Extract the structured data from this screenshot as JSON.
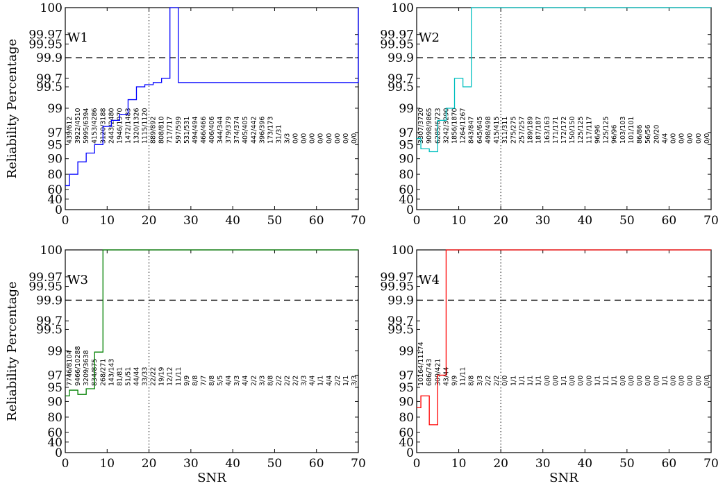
{
  "chart_data": [
    {
      "type": "line",
      "title": "W1",
      "xlabel": "",
      "ylabel": "Reliability Percentage",
      "color": "#0000ff",
      "xlim": [
        0,
        70
      ],
      "y_ticks": [
        "0",
        "40",
        "60",
        "80",
        "90",
        "95",
        "97",
        "99",
        "99.5",
        "99.7",
        "99.9",
        "99.95",
        "99.97",
        "100"
      ],
      "x_ticks": [
        "0",
        "10",
        "20",
        "30",
        "40",
        "50",
        "60",
        "70"
      ],
      "reference_x": 20,
      "reference_y": "99.9",
      "series": [
        {
          "step_x": [
            0,
            1,
            3,
            5,
            7,
            9,
            11,
            13,
            15,
            17,
            19,
            21,
            23,
            25,
            27,
            70
          ],
          "step_y": [
            65,
            80,
            88,
            92,
            95,
            97.5,
            98,
            98.5,
            99.2,
            99.5,
            99.55,
            99.6,
            99.7,
            100,
            99.6,
            100
          ]
        }
      ],
      "count_labels": [
        "439/612",
        "3922/4510",
        "5995/6394",
        "4153/4286",
        "3120/3188",
        "2443/2480",
        "1946/1970",
        "1472/1483",
        "1320/1326",
        "1115/1120",
        "889/892",
        "808/810",
        "717/717",
        "597/599",
        "531/531",
        "494/494",
        "466/466",
        "406/406",
        "344/344",
        "379/379",
        "374/374",
        "405/405",
        "442/442",
        "396/396",
        "173/173",
        "31/31",
        "3/3",
        "0/0",
        "0/0",
        "0/0",
        "0/0",
        "0/0",
        "0/0",
        "0/0",
        "0/0"
      ]
    },
    {
      "type": "line",
      "title": "W2",
      "xlabel": "",
      "ylabel": "",
      "color": "#00bfbf",
      "xlim": [
        0,
        70
      ],
      "y_ticks": [
        "0",
        "40",
        "60",
        "80",
        "90",
        "95",
        "97",
        "99",
        "99.5",
        "99.7",
        "99.9",
        "99.95",
        "99.97",
        "100"
      ],
      "x_ticks": [
        "0",
        "10",
        "20",
        "30",
        "40",
        "50",
        "60",
        "70"
      ],
      "reference_x": 20,
      "reference_y": "99.9",
      "series": [
        {
          "step_x": [
            0,
            1,
            3,
            5,
            7,
            9,
            11,
            13,
            70
          ],
          "step_y": [
            96,
            93.5,
            92.5,
            98,
            99,
            99.7,
            99.5,
            100,
            100
          ]
        }
      ],
      "count_labels": [
        "3307/3720",
        "9098/9865",
        "6285/6723",
        "3242/3290",
        "1856/1870",
        "1264/1267",
        "843/847",
        "645/645",
        "498/498",
        "415/415",
        "311/311",
        "275/275",
        "257/257",
        "189/189",
        "187/187",
        "163/163",
        "171/171",
        "172/172",
        "150/150",
        "125/125",
        "117/117",
        "96/96",
        "125/125",
        "96/96",
        "103/103",
        "101/101",
        "86/86",
        "56/56",
        "20/20",
        "4/4",
        "0/0",
        "0/0",
        "0/0",
        "0/0",
        "0/0"
      ]
    },
    {
      "type": "line",
      "title": "W3",
      "xlabel": "SNR",
      "ylabel": "Reliability Percentage",
      "color": "#008000",
      "xlim": [
        0,
        70
      ],
      "y_ticks": [
        "0",
        "40",
        "60",
        "80",
        "90",
        "95",
        "97",
        "99",
        "99.5",
        "99.7",
        "99.9",
        "99.95",
        "99.97",
        "100"
      ],
      "x_ticks": [
        "0",
        "10",
        "20",
        "30",
        "40",
        "50",
        "60",
        "70"
      ],
      "reference_x": 20,
      "reference_y": "99.9",
      "series": [
        {
          "step_x": [
            0,
            1,
            3,
            5,
            7,
            9,
            70
          ],
          "step_y": [
            92,
            94,
            92.5,
            94.5,
            98.9,
            100,
            100
          ]
        }
      ],
      "count_labels": [
        "7746/8104",
        "9466/10288",
        "3209/3638",
        "834/875",
        "268/271",
        "143/143",
        "81/81",
        "51/51",
        "44/44",
        "33/33",
        "22/22",
        "19/19",
        "12/12",
        "11/11",
        "9/9",
        "8/8",
        "7/7",
        "8/8",
        "5/5",
        "4/4",
        "3/3",
        "4/4",
        "2/2",
        "3/3",
        "8/8",
        "2/2",
        "2/2",
        "2/2",
        "3/3",
        "4/4",
        "1/1",
        "4/4",
        "2/2",
        "1/1",
        "3/3"
      ]
    },
    {
      "type": "line",
      "title": "W4",
      "xlabel": "SNR",
      "ylabel": "",
      "color": "#ff0000",
      "xlim": [
        0,
        70
      ],
      "y_ticks": [
        "0",
        "40",
        "60",
        "80",
        "90",
        "95",
        "97",
        "99",
        "99.5",
        "99.7",
        "99.9",
        "99.95",
        "99.97",
        "100"
      ],
      "x_ticks": [
        "0",
        "10",
        "20",
        "30",
        "40",
        "50",
        "60",
        "70"
      ],
      "reference_x": 20,
      "reference_y": "99.9",
      "series": [
        {
          "step_x": [
            0,
            1,
            3,
            5,
            7,
            70
          ],
          "step_y": [
            86,
            92,
            70,
            97,
            100,
            100
          ]
        }
      ],
      "count_labels": [
        "10164/11174",
        "686/743",
        "309/421",
        "43/44",
        "9/9",
        "11/11",
        "8/8",
        "3/3",
        "2/2",
        "2/2",
        "0/0",
        "1/1",
        "1/1",
        "1/1",
        "1/1",
        "0/0",
        "0/0",
        "1/1",
        "0/0",
        "0/0",
        "0/0",
        "1/1",
        "1/1",
        "1/1",
        "0/0",
        "0/0",
        "0/0",
        "0/0",
        "0/0",
        "1/1",
        "0/0",
        "0/0",
        "0/0",
        "0/0",
        "0/0"
      ]
    }
  ]
}
